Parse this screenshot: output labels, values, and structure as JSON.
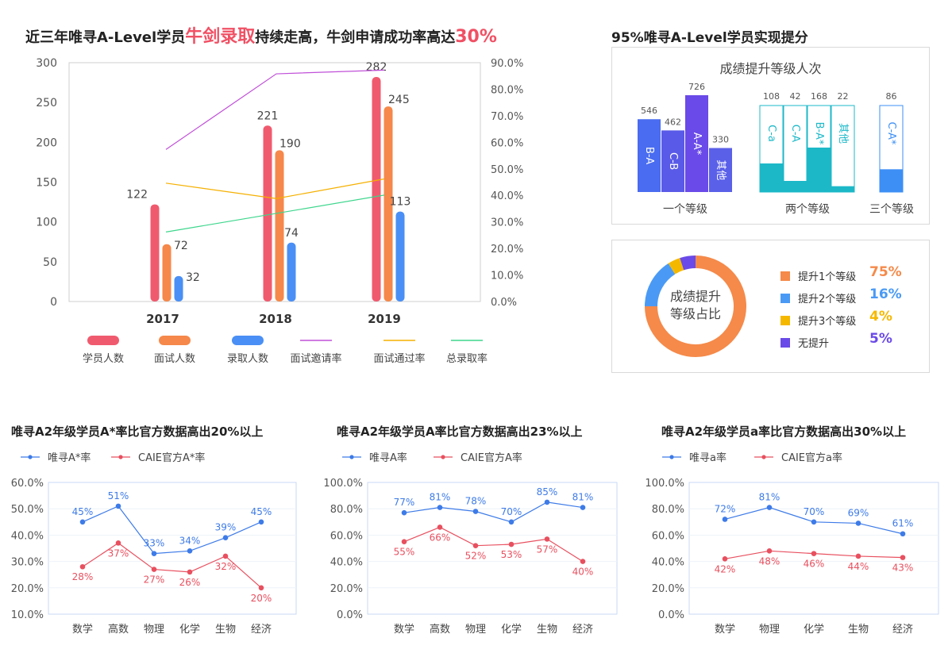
{
  "main": {
    "title_pre": "近三年唯寻A-Level学员",
    "title_hl1": "牛剑录取",
    "title_mid": "持续走高，牛剑申请成功率高达",
    "title_hl2": "30%"
  },
  "right": {
    "title": "95%唯寻A-Level学员实现提分",
    "bars_title": "成绩提升等级人次",
    "pie_legend": [
      {
        "label": "提升1个等级",
        "pct": "75%",
        "color": "#f58a4a"
      },
      {
        "label": "提升2个等级",
        "pct": "16%",
        "color": "#4a9af5"
      },
      {
        "label": "提升3个等级",
        "pct": "4%",
        "color": "#f5b800"
      },
      {
        "label": "无提升",
        "pct": "5%",
        "color": "#6a4ae8"
      }
    ],
    "pie_center": [
      "成绩提升",
      "等级占比"
    ]
  },
  "chart_data": [
    {
      "type": "bar",
      "categories": [
        "2017",
        "2018",
        "2019"
      ],
      "series": [
        {
          "name": "学员人数",
          "values": [
            122,
            221,
            282
          ],
          "color": "#f05a6e"
        },
        {
          "name": "面试人数",
          "values": [
            72,
            190,
            245
          ],
          "color": "#f5884a"
        },
        {
          "name": "录取人数",
          "values": [
            32,
            74,
            113
          ],
          "color": "#4a8ff5"
        }
      ],
      "line_series": [
        {
          "name": "面试邀请率",
          "values": [
            57.3,
            85.8,
            87.2
          ],
          "color": "#c050d8"
        },
        {
          "name": "面试通过率",
          "values": [
            44.6,
            38.8,
            46.2
          ],
          "color": "#f5b000"
        },
        {
          "name": "总录取率",
          "values": [
            26.2,
            33.2,
            40.1
          ],
          "color": "#3dd68c"
        }
      ],
      "ylim": [
        0,
        300
      ],
      "y_ticks": [
        "0",
        "50",
        "100",
        "150",
        "200",
        "250",
        "300"
      ],
      "y2lim": [
        0,
        90
      ],
      "y2_ticks": [
        "0.0%",
        "10.0%",
        "20.0%",
        "30.0%",
        "40.0%",
        "50.0%",
        "60.0%",
        "70.0%",
        "80.0%",
        "90.0%"
      ]
    },
    {
      "type": "bar",
      "title": "成绩提升等级人次",
      "groups": [
        {
          "label": "一个等级",
          "bars": [
            {
              "name": "B-A",
              "value": 546
            },
            {
              "name": "C-B",
              "value": 462
            },
            {
              "name": "A-A*",
              "value": 726
            },
            {
              "name": "其他",
              "value": 330
            }
          ]
        },
        {
          "label": "两个等级",
          "bars": [
            {
              "name": "C-a",
              "value": 108
            },
            {
              "name": "C-A",
              "value": 42
            },
            {
              "name": "B-A*",
              "value": 168
            },
            {
              "name": "其他",
              "value": 22
            }
          ]
        },
        {
          "label": "三个等级",
          "bars": [
            {
              "name": "C-A*",
              "value": 86
            }
          ]
        }
      ]
    },
    {
      "type": "pie",
      "labels": [
        "提升1个等级",
        "提升2个等级",
        "提升3个等级",
        "无提升"
      ],
      "values": [
        75,
        16,
        4,
        5
      ]
    },
    {
      "type": "line",
      "title": "唯寻A2年级学员A*率比官方数据高出20%以上",
      "categories": [
        "数学",
        "高数",
        "物理",
        "化学",
        "生物",
        "经济"
      ],
      "series": [
        {
          "name": "唯寻A*率",
          "values": [
            45,
            51,
            33,
            34,
            39,
            45
          ],
          "labels": [
            "45%",
            "51%",
            "33%",
            "34%",
            "39%",
            "45%"
          ],
          "color": "#3d7be8"
        },
        {
          "name": "CAIE官方A*率",
          "values": [
            28,
            37,
            27,
            26,
            32,
            20
          ],
          "labels": [
            "28%",
            "37%",
            "27%",
            "26%",
            "32%",
            "20%"
          ],
          "color": "#e8505f"
        }
      ],
      "ylim": [
        10,
        60
      ],
      "y_ticks": [
        "10.0%",
        "20.0%",
        "30.0%",
        "40.0%",
        "50.0%",
        "60.0%"
      ]
    },
    {
      "type": "line",
      "title": "唯寻A2年级学员A率比官方数据高出23%以上",
      "categories": [
        "数学",
        "高数",
        "物理",
        "化学",
        "生物",
        "经济"
      ],
      "series": [
        {
          "name": "唯寻A率",
          "values": [
            77,
            81,
            78,
            70,
            85,
            81
          ],
          "labels": [
            "77%",
            "81%",
            "78%",
            "70%",
            "85%",
            "81%"
          ],
          "color": "#3d7be8"
        },
        {
          "name": "CAIE官方A率",
          "values": [
            55,
            66,
            52,
            53,
            57,
            40
          ],
          "labels": [
            "55%",
            "66%",
            "52%",
            "53%",
            "57%",
            "40%"
          ],
          "color": "#e8505f"
        }
      ],
      "ylim": [
        0,
        100
      ],
      "y_ticks": [
        "0.0%",
        "20.0%",
        "40.0%",
        "60.0%",
        "80.0%",
        "100.0%"
      ]
    },
    {
      "type": "line",
      "title": "唯寻A2年级学员a率比官方数据高出30%以上",
      "categories": [
        "数学",
        "物理",
        "化学",
        "生物",
        "经济"
      ],
      "series": [
        {
          "name": "唯寻a率",
          "values": [
            72,
            81,
            70,
            69,
            61
          ],
          "labels": [
            "72%",
            "81%",
            "70%",
            "69%",
            "61%"
          ],
          "color": "#3d7be8"
        },
        {
          "name": "CAIE官方a率",
          "values": [
            42,
            48,
            46,
            44,
            43
          ],
          "labels": [
            "42%",
            "48%",
            "46%",
            "44%",
            "43%"
          ],
          "color": "#e8505f"
        }
      ],
      "ylim": [
        0,
        100
      ],
      "y_ticks": [
        "0.0%",
        "20.0%",
        "40.0%",
        "60.0%",
        "80.0%",
        "100.0%"
      ]
    }
  ]
}
